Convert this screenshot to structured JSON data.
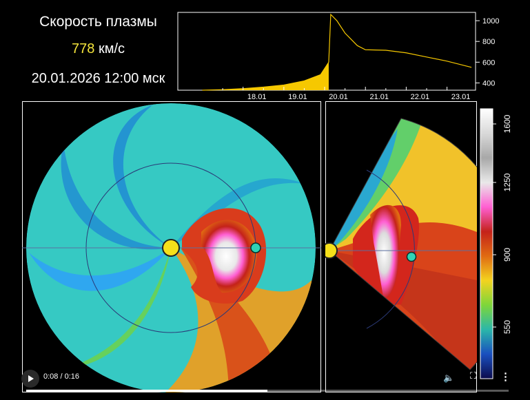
{
  "header": {
    "title": "Скорость плазмы",
    "speed_value": "778",
    "speed_unit": "км/с",
    "datetime": "20.01.2026 12:00 мск"
  },
  "chart_data": {
    "type": "area",
    "x_ticks": [
      "18.01",
      "19.01",
      "20.01",
      "21.01",
      "22.01",
      "23.01"
    ],
    "y_ticks": [
      "1000",
      "800",
      "600",
      "400"
    ],
    "ylim": [
      330,
      1080
    ],
    "highlight_color": "#f6c800",
    "x_day": [
      17.0,
      17.5,
      18.0,
      18.5,
      19.0,
      19.5,
      19.9,
      20.1,
      20.15,
      20.3,
      20.5,
      20.8,
      21.0,
      21.5,
      22.0,
      22.5,
      23.0,
      23.6
    ],
    "y_speed": [
      330,
      335,
      345,
      360,
      380,
      420,
      480,
      600,
      1060,
      1000,
      880,
      760,
      720,
      715,
      690,
      650,
      610,
      550
    ],
    "current_day": 20.1
  },
  "colorbar": {
    "labels": [
      "1600",
      "1250",
      "900",
      "550"
    ],
    "colors": [
      "#ffffff",
      "#d9d9d9",
      "#a8a8a8",
      "#e9e9e9",
      "#ff5fd2",
      "#c4221a",
      "#e06a12",
      "#f3d31f",
      "#7ed63a",
      "#2bb7a9",
      "#1a4fbf",
      "#0c0c4d"
    ]
  },
  "video": {
    "time": "0:08 / 0:16",
    "progress": 0.5
  }
}
